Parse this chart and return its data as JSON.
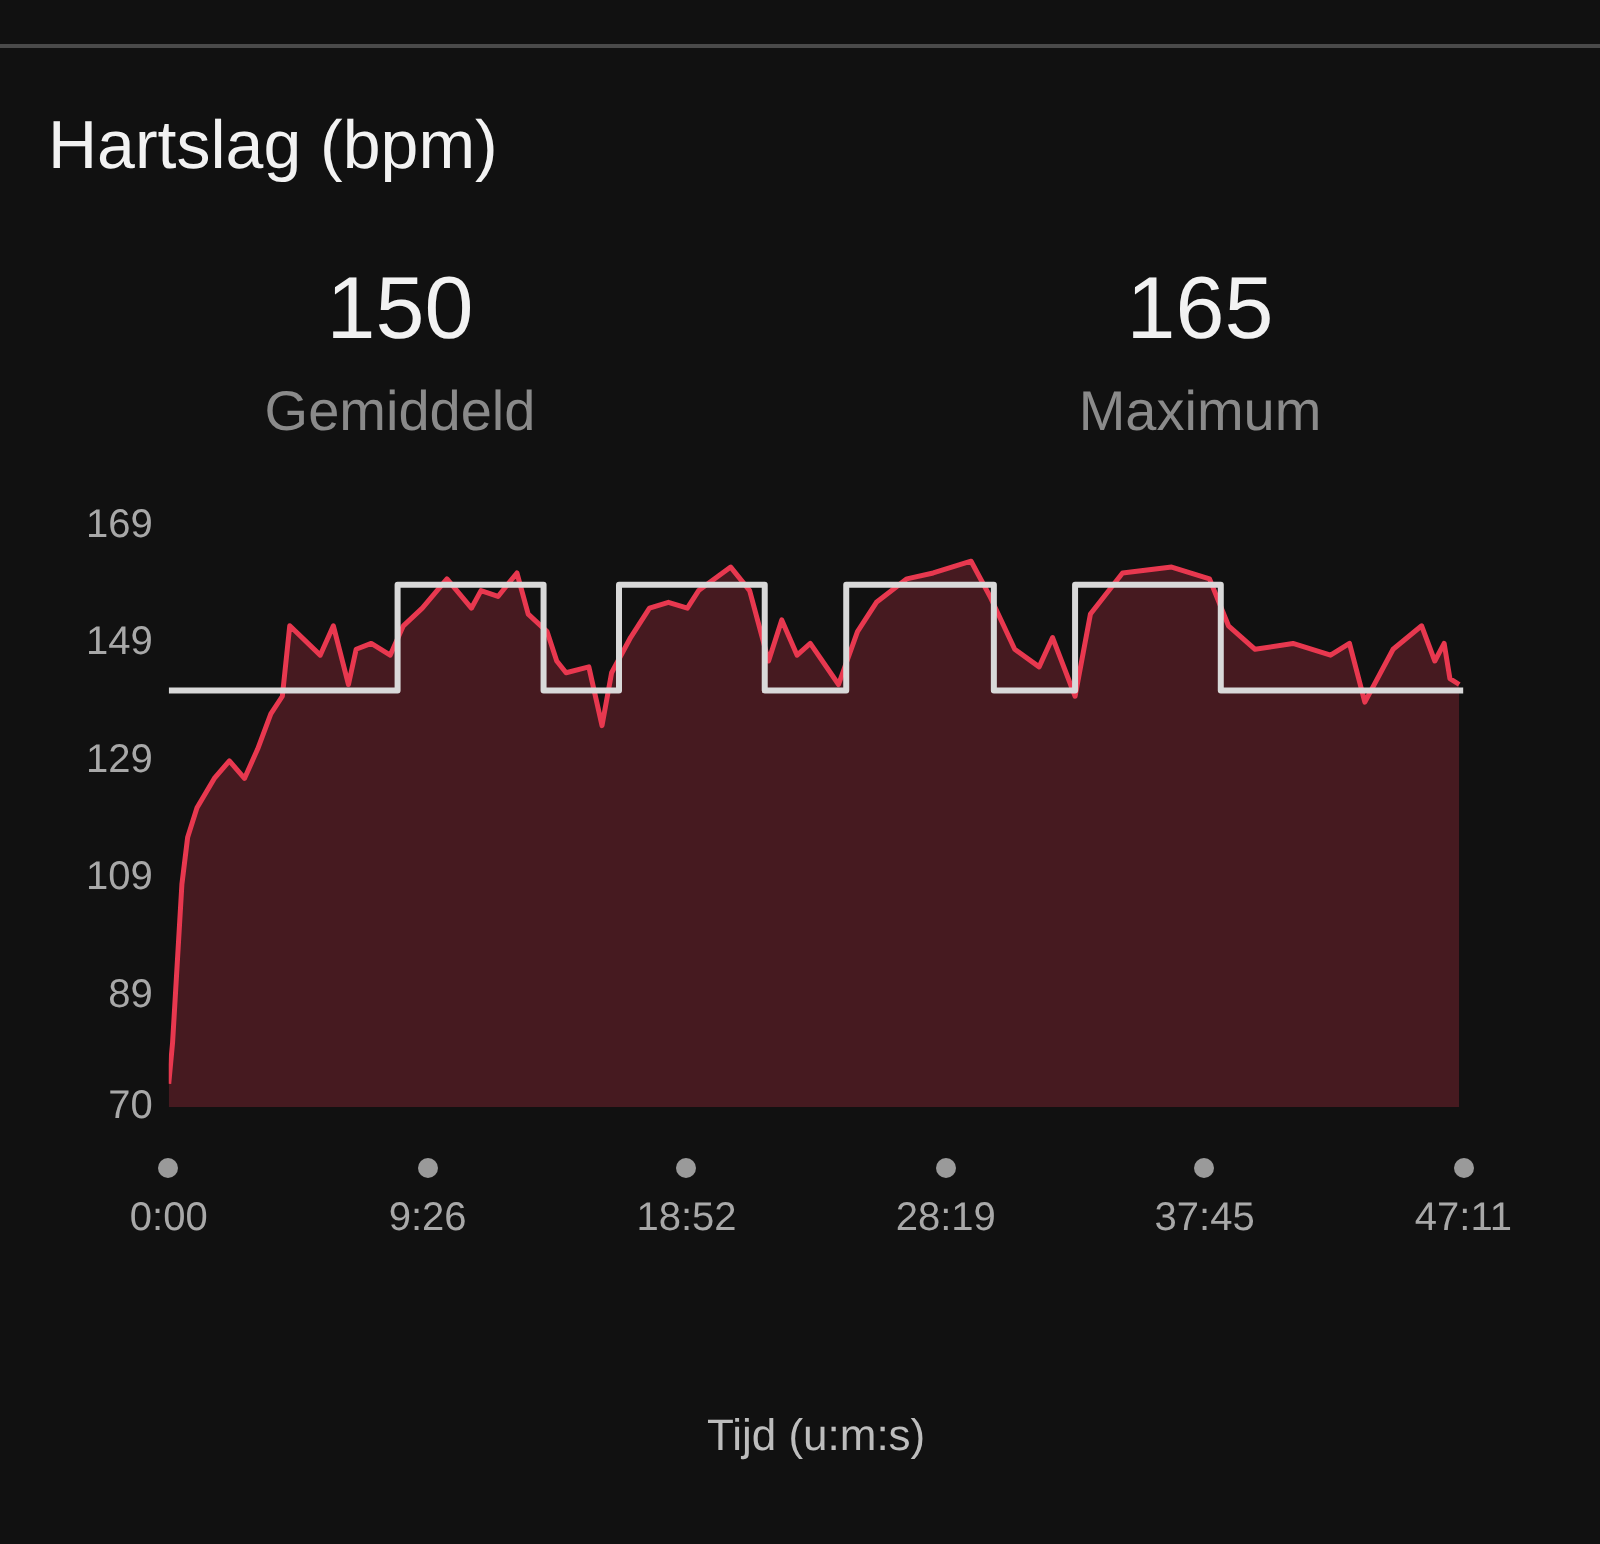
{
  "chart_data": {
    "type": "area",
    "title": "Hartslag (bpm)",
    "xlabel": "Tijd (u:m:s)",
    "annotations": [
      "150",
      "Gemiddeld",
      "165",
      "Maximum"
    ],
    "xlim": [
      0,
      47.183
    ],
    "xticks": [
      {
        "value": 0,
        "label": "0:00"
      },
      {
        "value": 9.433,
        "label": "9:26"
      },
      {
        "value": 18.867,
        "label": "18:52"
      },
      {
        "value": 28.317,
        "label": "28:19"
      },
      {
        "value": 37.75,
        "label": "37:45"
      },
      {
        "value": 47.183,
        "label": "47:11"
      }
    ],
    "ylim": [
      70,
      169
    ],
    "yticks": [
      70,
      89,
      109,
      129,
      149,
      169
    ],
    "grid": false,
    "legend": false,
    "marker": "none",
    "series": [
      {
        "type": "step",
        "color": "#d9d9d9",
        "x": [
          0,
          8.34,
          13.66,
          16.41,
          21.72,
          24.69,
          30.07,
          33.03,
          38.34,
          47.183
        ],
        "values": [
          141,
          159,
          141,
          159,
          141,
          159,
          141,
          159,
          141,
          141
        ]
      },
      {
        "type": "area",
        "color": "#e8384f",
        "x": [
          0,
          0.14,
          0.48,
          0.69,
          1.03,
          1.66,
          2.21,
          2.76,
          3.24,
          3.72,
          4.14,
          4.41,
          5.52,
          6.0,
          6.55,
          6.83,
          7.38,
          8.07,
          8.55,
          9.24,
          10.14,
          11.03,
          11.38,
          12.0,
          12.69,
          13.1,
          13.79,
          14.14,
          14.48,
          15.31,
          15.79,
          16.14,
          16.83,
          17.52,
          18.21,
          18.9,
          19.31,
          20.48,
          21.17,
          21.86,
          22.34,
          22.9,
          23.38,
          24.41,
          25.1,
          25.79,
          26.9,
          27.86,
          29.24,
          29.93,
          30.83,
          31.72,
          32.21,
          33.03,
          33.59,
          34.76,
          36.55,
          37.93,
          38.62,
          39.59,
          40.97,
          42.34,
          43.03,
          43.59,
          44.62,
          45.66,
          46.14,
          46.48,
          46.69,
          47.03
        ],
        "values": [
          74,
          81,
          108,
          116,
          121,
          126,
          129,
          126,
          131,
          137,
          140,
          152,
          147,
          152,
          142,
          148,
          149,
          147,
          152,
          155,
          160,
          155,
          158,
          157,
          161,
          154,
          151,
          146,
          144,
          145,
          135,
          144,
          150,
          155,
          156,
          155,
          158,
          162,
          158,
          146,
          153,
          147,
          149,
          142,
          151,
          156,
          160,
          161,
          163,
          157,
          148,
          145,
          150,
          140,
          154,
          161,
          162,
          160,
          152,
          148,
          149,
          147,
          149,
          139,
          148,
          152,
          146,
          149,
          143,
          142
        ]
      }
    ]
  }
}
